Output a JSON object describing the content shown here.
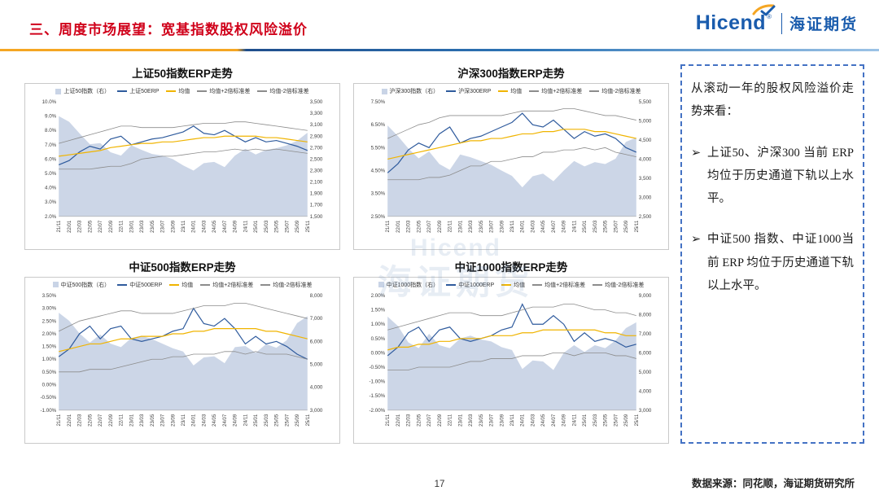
{
  "header": {
    "title": "三、周度市场展望：宽基指数股权风险溢价",
    "logo": {
      "brand": "Hicend",
      "reg": "®",
      "company": "海证期货"
    }
  },
  "watermark": {
    "line1": "Hicend",
    "line2": "海证期货"
  },
  "note_panel": {
    "intro": "从滚动一年的股权风险溢价走势来看：",
    "bullets": [
      {
        "marker": "➢",
        "text": "上证50、沪深300 当前 ERP 均位于历史通道下轨以上水平。"
      },
      {
        "marker": "➢",
        "text": "中证500 指数、中证1000当前 ERP 均位于历史通道下轨以上水平。"
      }
    ]
  },
  "footer": {
    "page_number": "17",
    "source": "数据来源：同花顺，海证期货研究所"
  },
  "colors": {
    "accent_red": "#d0021b",
    "brand_blue": "#1a5cad",
    "brand_orange": "#f5a623",
    "rule_navy": "#1f4e8c",
    "rule_blue": "#2e75b6",
    "rule_light": "#9cc3e6",
    "area": "#c9d4e6",
    "erp": "#2f5b9d",
    "mean": "#f0b400",
    "band": "#8c8c8c",
    "panel_border": "#4472c4",
    "frame_border": "#c9c9c9",
    "text_dark": "#1a1a1a",
    "axis_text": "#404040",
    "watermark": "#6f93c0"
  },
  "chart_data": [
    {
      "type": "line",
      "title": "上证50指数ERP走势",
      "legend_position": "top",
      "grid": false,
      "x_labels": [
        "21/11",
        "22/01",
        "22/03",
        "22/05",
        "22/07",
        "22/09",
        "22/11",
        "23/01",
        "23/03",
        "23/05",
        "23/07",
        "23/09",
        "23/11",
        "24/01",
        "24/03",
        "24/05",
        "24/07",
        "24/09",
        "24/11",
        "25/01",
        "25/03",
        "25/05",
        "25/07",
        "25/09",
        "25/11"
      ],
      "left_axis": {
        "min": 2.0,
        "max": 10.0,
        "step": 1.0,
        "decimals": 1,
        "unit": "%"
      },
      "right_axis": {
        "min": 1500,
        "max": 3500,
        "step": 200
      },
      "series": [
        {
          "name": "上证50指数（右）",
          "axis": "right",
          "kind": "area",
          "color_key": "area",
          "values": [
            3250,
            3150,
            2950,
            2760,
            2780,
            2620,
            2560,
            2740,
            2660,
            2590,
            2560,
            2500,
            2390,
            2300,
            2430,
            2450,
            2360,
            2560,
            2680,
            2580,
            2660,
            2690,
            2740,
            2820,
            2960
          ]
        },
        {
          "name": "上证50ERP",
          "axis": "left",
          "kind": "line",
          "color_key": "erp",
          "values": [
            5.6,
            5.9,
            6.5,
            6.9,
            6.7,
            7.4,
            7.6,
            7.0,
            7.2,
            7.4,
            7.5,
            7.7,
            7.9,
            8.3,
            7.8,
            7.7,
            8.0,
            7.6,
            7.2,
            7.5,
            7.2,
            7.3,
            7.1,
            6.9,
            6.6
          ]
        },
        {
          "name": "均值",
          "axis": "left",
          "kind": "line",
          "color_key": "mean",
          "values": [
            6.2,
            6.3,
            6.4,
            6.5,
            6.6,
            6.8,
            6.9,
            7.0,
            7.1,
            7.1,
            7.2,
            7.2,
            7.3,
            7.4,
            7.5,
            7.5,
            7.6,
            7.6,
            7.6,
            7.6,
            7.5,
            7.5,
            7.4,
            7.3,
            7.2
          ]
        },
        {
          "name": "均值+2倍标准差",
          "axis": "left",
          "kind": "line",
          "color_key": "band",
          "values": [
            7.1,
            7.3,
            7.5,
            7.7,
            7.9,
            8.1,
            8.3,
            8.3,
            8.2,
            8.2,
            8.2,
            8.2,
            8.3,
            8.4,
            8.5,
            8.5,
            8.5,
            8.6,
            8.6,
            8.5,
            8.4,
            8.3,
            8.2,
            8.1,
            8.0
          ]
        },
        {
          "name": "均值-2倍标准差",
          "axis": "left",
          "kind": "line",
          "color_key": "band",
          "values": [
            5.3,
            5.3,
            5.3,
            5.3,
            5.4,
            5.5,
            5.5,
            5.7,
            6.0,
            6.1,
            6.2,
            6.2,
            6.3,
            6.4,
            6.5,
            6.5,
            6.6,
            6.7,
            6.6,
            6.7,
            6.6,
            6.7,
            6.6,
            6.5,
            6.4
          ]
        }
      ]
    },
    {
      "type": "line",
      "title": "沪深300指数ERP走势",
      "legend_position": "top",
      "grid": false,
      "x_labels": [
        "21/11",
        "22/01",
        "22/03",
        "22/05",
        "22/07",
        "22/09",
        "22/11",
        "23/01",
        "23/03",
        "23/05",
        "23/07",
        "23/09",
        "23/11",
        "24/01",
        "24/03",
        "24/05",
        "24/07",
        "24/09",
        "24/11",
        "25/01",
        "25/03",
        "25/05",
        "25/07",
        "25/09",
        "25/11"
      ],
      "left_axis": {
        "min": 2.5,
        "max": 7.5,
        "step": 1.0,
        "decimals": 2,
        "unit": "%"
      },
      "right_axis": {
        "min": 2500,
        "max": 5500,
        "step": 500
      },
      "series": [
        {
          "name": "沪深300指数（右）",
          "axis": "right",
          "kind": "area",
          "color_key": "area",
          "values": [
            4880,
            4600,
            4280,
            4020,
            4200,
            3870,
            3720,
            4120,
            4050,
            3950,
            3850,
            3700,
            3560,
            3260,
            3550,
            3620,
            3420,
            3700,
            3950,
            3810,
            3920,
            3870,
            4010,
            4450,
            4560
          ]
        },
        {
          "name": "沪深300ERP",
          "axis": "left",
          "kind": "line",
          "color_key": "erp",
          "values": [
            4.4,
            4.8,
            5.4,
            5.7,
            5.5,
            6.1,
            6.4,
            5.7,
            5.9,
            6.0,
            6.2,
            6.4,
            6.6,
            7.0,
            6.5,
            6.4,
            6.7,
            6.3,
            5.9,
            6.2,
            6.0,
            6.1,
            5.9,
            5.5,
            5.3
          ]
        },
        {
          "name": "均值",
          "axis": "left",
          "kind": "line",
          "color_key": "mean",
          "values": [
            5.0,
            5.1,
            5.2,
            5.3,
            5.4,
            5.5,
            5.6,
            5.7,
            5.8,
            5.8,
            5.9,
            5.9,
            6.0,
            6.1,
            6.1,
            6.2,
            6.2,
            6.3,
            6.3,
            6.3,
            6.2,
            6.2,
            6.1,
            6.0,
            5.9
          ]
        },
        {
          "name": "均值+2倍标准差",
          "axis": "left",
          "kind": "line",
          "color_key": "band",
          "values": [
            5.9,
            6.1,
            6.3,
            6.5,
            6.6,
            6.8,
            6.9,
            6.9,
            6.9,
            6.9,
            6.9,
            6.9,
            7.0,
            7.1,
            7.1,
            7.1,
            7.1,
            7.2,
            7.2,
            7.1,
            7.0,
            6.9,
            6.9,
            6.8,
            6.7
          ]
        },
        {
          "name": "均值-2倍标准差",
          "axis": "left",
          "kind": "line",
          "color_key": "band",
          "values": [
            4.1,
            4.1,
            4.1,
            4.1,
            4.2,
            4.2,
            4.3,
            4.5,
            4.7,
            4.7,
            4.9,
            4.9,
            5.0,
            5.1,
            5.1,
            5.3,
            5.3,
            5.4,
            5.4,
            5.5,
            5.4,
            5.5,
            5.3,
            5.2,
            5.1
          ]
        }
      ]
    },
    {
      "type": "line",
      "title": "中证500指数ERP走势",
      "legend_position": "top",
      "grid": false,
      "x_labels": [
        "21/11",
        "22/01",
        "22/03",
        "22/05",
        "22/07",
        "22/09",
        "22/11",
        "23/01",
        "23/03",
        "23/05",
        "23/07",
        "23/09",
        "23/11",
        "24/01",
        "24/03",
        "24/05",
        "24/07",
        "24/09",
        "24/11",
        "25/01",
        "25/03",
        "25/05",
        "25/07",
        "25/09",
        "25/11"
      ],
      "left_axis": {
        "min": -1.0,
        "max": 3.5,
        "step": 0.5,
        "decimals": 2,
        "unit": "%"
      },
      "right_axis": {
        "min": 3000,
        "max": 8000,
        "step": 1000
      },
      "series": [
        {
          "name": "中证500指数（右）",
          "axis": "right",
          "kind": "area",
          "color_key": "area",
          "values": [
            7250,
            6900,
            6350,
            5950,
            6300,
            5900,
            5750,
            6150,
            6250,
            6100,
            5900,
            5700,
            5560,
            4950,
            5300,
            5350,
            5050,
            5750,
            5800,
            5500,
            5880,
            5720,
            6050,
            6800,
            7100
          ]
        },
        {
          "name": "中证500ERP",
          "axis": "left",
          "kind": "line",
          "color_key": "erp",
          "values": [
            1.1,
            1.4,
            2.0,
            2.3,
            1.8,
            2.2,
            2.3,
            1.8,
            1.7,
            1.8,
            1.9,
            2.1,
            2.2,
            3.0,
            2.4,
            2.3,
            2.6,
            2.2,
            1.6,
            1.9,
            1.6,
            1.7,
            1.5,
            1.2,
            1.0
          ]
        },
        {
          "name": "均值",
          "axis": "left",
          "kind": "line",
          "color_key": "mean",
          "values": [
            1.3,
            1.4,
            1.5,
            1.6,
            1.6,
            1.7,
            1.8,
            1.8,
            1.9,
            1.9,
            1.9,
            2.0,
            2.0,
            2.1,
            2.1,
            2.2,
            2.2,
            2.2,
            2.2,
            2.2,
            2.1,
            2.1,
            2.0,
            1.9,
            1.8
          ]
        },
        {
          "name": "均值+2倍标准差",
          "axis": "left",
          "kind": "line",
          "color_key": "band",
          "values": [
            2.1,
            2.3,
            2.5,
            2.6,
            2.7,
            2.8,
            2.9,
            2.9,
            2.8,
            2.8,
            2.8,
            2.8,
            2.9,
            3.0,
            3.1,
            3.1,
            3.1,
            3.2,
            3.2,
            3.1,
            3.0,
            2.9,
            2.8,
            2.7,
            2.6
          ]
        },
        {
          "name": "均值-2倍标准差",
          "axis": "left",
          "kind": "line",
          "color_key": "band",
          "values": [
            0.5,
            0.5,
            0.5,
            0.6,
            0.6,
            0.6,
            0.7,
            0.8,
            0.9,
            1.0,
            1.0,
            1.1,
            1.1,
            1.2,
            1.2,
            1.2,
            1.3,
            1.3,
            1.2,
            1.3,
            1.2,
            1.2,
            1.2,
            1.1,
            1.0
          ]
        }
      ]
    },
    {
      "type": "line",
      "title": "中证1000指数ERP走势",
      "legend_position": "top",
      "grid": false,
      "x_labels": [
        "21/11",
        "22/01",
        "22/03",
        "22/05",
        "22/07",
        "22/09",
        "22/11",
        "23/01",
        "23/03",
        "23/05",
        "23/07",
        "23/09",
        "23/11",
        "24/01",
        "24/03",
        "24/05",
        "24/07",
        "24/09",
        "24/11",
        "25/01",
        "25/03",
        "25/05",
        "25/07",
        "25/09",
        "25/11"
      ],
      "left_axis": {
        "min": -2.0,
        "max": 2.0,
        "step": 0.5,
        "decimals": 2,
        "unit": "%"
      },
      "right_axis": {
        "min": 3000,
        "max": 9000,
        "step": 1000
      },
      "series": [
        {
          "name": "中证1000指数（右）",
          "axis": "right",
          "kind": "area",
          "color_key": "area",
          "values": [
            7900,
            7400,
            6550,
            6250,
            7000,
            6400,
            6250,
            6750,
            6900,
            6700,
            6600,
            6300,
            6150,
            5150,
            5600,
            5550,
            5100,
            6000,
            6400,
            6050,
            6400,
            6250,
            6650,
            7300,
            7600
          ]
        },
        {
          "name": "中证1000ERP",
          "axis": "left",
          "kind": "line",
          "color_key": "erp",
          "values": [
            -0.1,
            0.2,
            0.7,
            0.9,
            0.4,
            0.8,
            0.9,
            0.5,
            0.4,
            0.5,
            0.6,
            0.8,
            0.9,
            1.7,
            1.0,
            1.0,
            1.3,
            1.0,
            0.4,
            0.7,
            0.4,
            0.5,
            0.4,
            0.2,
            0.3
          ]
        },
        {
          "name": "均值",
          "axis": "left",
          "kind": "line",
          "color_key": "mean",
          "values": [
            0.1,
            0.2,
            0.2,
            0.3,
            0.3,
            0.4,
            0.4,
            0.5,
            0.5,
            0.5,
            0.6,
            0.6,
            0.6,
            0.7,
            0.7,
            0.8,
            0.8,
            0.8,
            0.8,
            0.8,
            0.8,
            0.7,
            0.7,
            0.6,
            0.6
          ]
        },
        {
          "name": "均值+2倍标准差",
          "axis": "left",
          "kind": "line",
          "color_key": "band",
          "values": [
            0.8,
            0.9,
            1.0,
            1.1,
            1.2,
            1.3,
            1.4,
            1.4,
            1.4,
            1.3,
            1.3,
            1.3,
            1.4,
            1.5,
            1.6,
            1.6,
            1.6,
            1.7,
            1.7,
            1.6,
            1.5,
            1.5,
            1.4,
            1.4,
            1.3
          ]
        },
        {
          "name": "均值-2倍标准差",
          "axis": "left",
          "kind": "line",
          "color_key": "band",
          "values": [
            -0.6,
            -0.6,
            -0.6,
            -0.5,
            -0.5,
            -0.5,
            -0.5,
            -0.4,
            -0.3,
            -0.3,
            -0.2,
            -0.2,
            -0.2,
            -0.1,
            -0.1,
            -0.1,
            0.0,
            0.0,
            -0.1,
            0.0,
            0.0,
            0.0,
            -0.1,
            -0.1,
            -0.2
          ]
        }
      ]
    }
  ]
}
